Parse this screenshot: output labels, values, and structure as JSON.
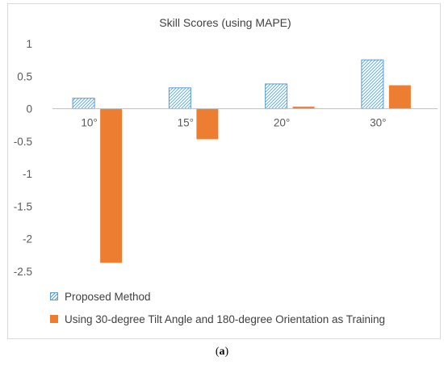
{
  "chart_data": {
    "type": "bar",
    "title": "Skill Scores (using MAPE)",
    "categories": [
      "10°",
      "15°",
      "20°",
      "30°"
    ],
    "series": [
      {
        "name": "Proposed Method",
        "values": [
          0.16,
          0.32,
          0.38,
          0.75
        ],
        "color": "#5b9bd5",
        "pattern": "hatched"
      },
      {
        "name": "Using 30-degree Tilt Angle and 180-degree Orientation as Training",
        "values": [
          -2.37,
          -0.47,
          0.03,
          0.36
        ],
        "color": "#ed7d31",
        "pattern": "solid"
      }
    ],
    "ylim": [
      -2.5,
      1
    ],
    "yticks": [
      "1",
      "0.5",
      "0",
      "-0.5",
      "-1",
      "-1.5",
      "-2",
      "-2.5"
    ],
    "ytick_values": [
      1,
      0.5,
      0,
      -0.5,
      -1,
      -1.5,
      -2,
      -2.5
    ],
    "xlabel": "",
    "ylabel": "",
    "grid": false,
    "legend_position": "bottom-left"
  },
  "caption": {
    "label": "a",
    "open": "(",
    "close": ")"
  }
}
